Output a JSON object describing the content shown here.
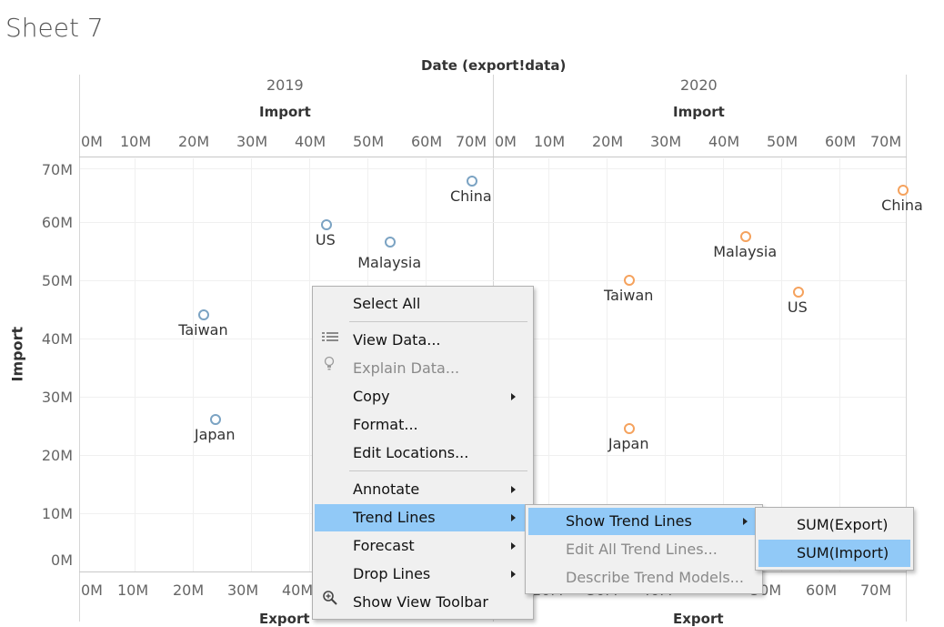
{
  "sheet_title": "Sheet 7",
  "column_header": "Date (export!data)",
  "panes": [
    {
      "year": "2019",
      "top_axis_title": "Import",
      "bottom_axis_title": "Export",
      "top_ticks": [
        "0M",
        "10M",
        "20M",
        "30M",
        "40M",
        "50M",
        "60M",
        "70M"
      ],
      "bottom_ticks": [
        "0M",
        "10M",
        "20M",
        "30M",
        "40M"
      ]
    },
    {
      "year": "2020",
      "top_axis_title": "Import",
      "bottom_axis_title": "Export",
      "top_ticks": [
        "0M",
        "10M",
        "20M",
        "30M",
        "40M",
        "50M",
        "60M",
        "70M"
      ],
      "bottom_ticks": [
        "20M",
        "30M",
        "40M",
        "50M",
        "60M",
        "70M"
      ]
    }
  ],
  "y_axis": {
    "title": "Import",
    "ticks": [
      "70M",
      "60M",
      "50M",
      "40M",
      "30M",
      "20M",
      "10M",
      "0M"
    ]
  },
  "colors": {
    "series_2019": "#7ba3c3",
    "series_2020": "#f5a25d",
    "menu_highlight": "#91c9f7"
  },
  "chart_data": {
    "type": "scatter",
    "xlabel": "Import",
    "ylabel": "Import",
    "ylim": [
      0,
      72000000
    ],
    "grid": true,
    "series": [
      {
        "name": "2019",
        "points": [
          {
            "label": "China",
            "x": 67000000,
            "y": 67500000
          },
          {
            "label": "US",
            "x": 42000000,
            "y": 60000000
          },
          {
            "label": "Malaysia",
            "x": 53000000,
            "y": 57000000
          },
          {
            "label": "Taiwan",
            "x": 21000000,
            "y": 44500000
          },
          {
            "label": "Japan",
            "x": 23000000,
            "y": 26500000
          }
        ]
      },
      {
        "name": "2020",
        "points": [
          {
            "label": "China",
            "x": 70000000,
            "y": 66000000
          },
          {
            "label": "Malaysia",
            "x": 43000000,
            "y": 58000000
          },
          {
            "label": "Taiwan",
            "x": 23000000,
            "y": 50500000
          },
          {
            "label": "US",
            "x": 52000000,
            "y": 48500000
          },
          {
            "label": "Japan",
            "x": 23000000,
            "y": 25000000
          }
        ]
      }
    ]
  },
  "context_menu": {
    "items": [
      {
        "label": "Select All"
      },
      {
        "label": "View Data...",
        "icon": "table-icon"
      },
      {
        "label": "Explain Data...",
        "icon": "lightbulb-icon",
        "disabled": true
      },
      {
        "label": "Copy",
        "submenu": true
      },
      {
        "label": "Format..."
      },
      {
        "label": "Edit Locations..."
      },
      {
        "label": "Annotate",
        "submenu": true
      },
      {
        "label": "Trend Lines",
        "submenu": true,
        "highlighted": true
      },
      {
        "label": "Forecast",
        "submenu": true
      },
      {
        "label": "Drop Lines",
        "submenu": true
      },
      {
        "label": "Show View Toolbar",
        "icon": "zoom-icon"
      }
    ]
  },
  "trend_menu": {
    "items": [
      {
        "label": "Show Trend Lines",
        "submenu": true,
        "highlighted": true
      },
      {
        "label": "Edit All Trend Lines...",
        "disabled": true
      },
      {
        "label": "Describe Trend Models...",
        "disabled": true
      }
    ]
  },
  "show_trend_menu": {
    "items": [
      {
        "label": "SUM(Export)"
      },
      {
        "label": "SUM(Import)",
        "highlighted": true
      }
    ]
  }
}
